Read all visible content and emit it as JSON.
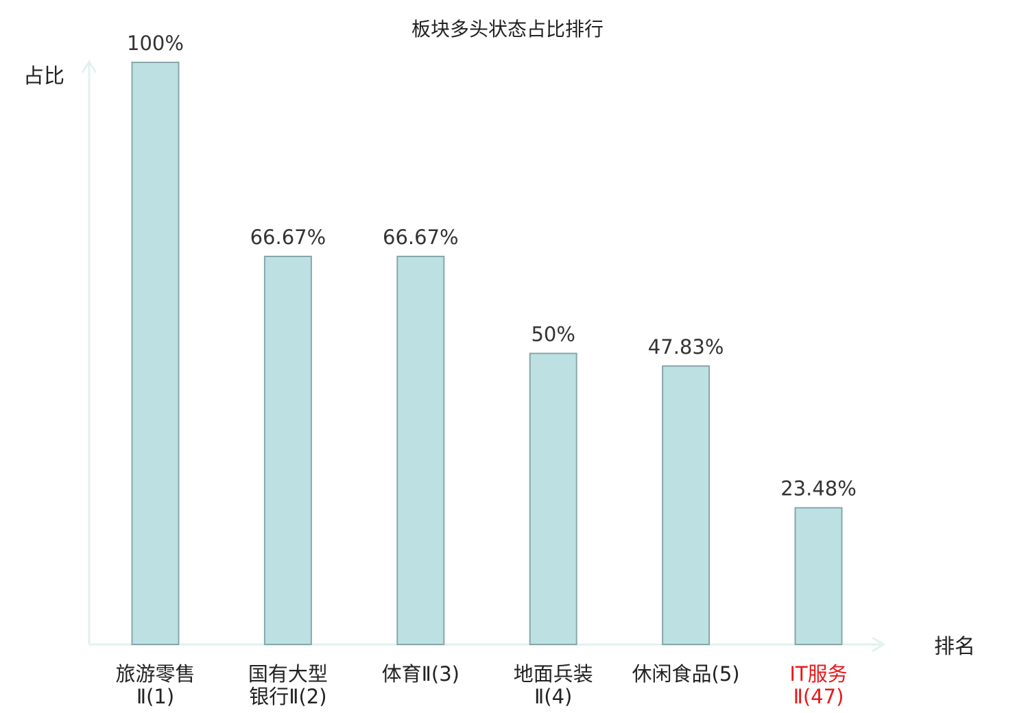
{
  "chart_data": {
    "type": "bar",
    "title": "板块多头状态占比排行",
    "ylabel": "占比",
    "xlabel": "排名",
    "ylim": [
      0,
      100
    ],
    "categories": [
      [
        "旅游零售",
        "Ⅱ(1)"
      ],
      [
        "国有大型",
        "银行Ⅱ(2)"
      ],
      [
        "体育Ⅱ(3)"
      ],
      [
        "地面兵装",
        "Ⅱ(4)"
      ],
      [
        "休闲食品(5)"
      ],
      [
        "IT服务",
        "Ⅱ(47)"
      ]
    ],
    "values": [
      100,
      66.67,
      66.67,
      50,
      47.83,
      23.48
    ],
    "value_labels": [
      "100%",
      "66.67%",
      "66.67%",
      "50%",
      "47.83%",
      "23.48%"
    ],
    "highlight_index": 5,
    "colors": {
      "bar_fill": "#bde0e3",
      "bar_stroke": "#86a7aa",
      "axis": "#e1f2ef",
      "highlight_text": "#e8191b",
      "text": "#222222"
    },
    "grid": false
  }
}
